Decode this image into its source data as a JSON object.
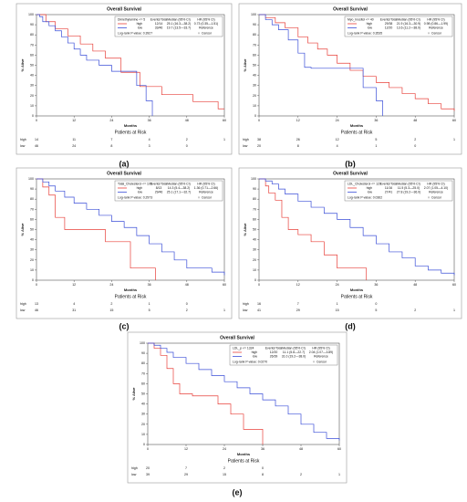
{
  "chart_data": [
    {
      "type": "line",
      "label": "(a)",
      "title": "Overall Survival",
      "legend_title": "Dimethylamine <= 5",
      "columns": [
        "Events/Total",
        "Median (95% CI)",
        "HR (95% CI)"
      ],
      "pvalue": "Log-rank P-value: 0.3927",
      "censor": "Censor",
      "xlabel": "Months",
      "ylabel": "% Alive",
      "risk_title": "Patients at Risk",
      "xlim": [
        0,
        60
      ],
      "ylim": [
        0,
        100
      ],
      "xticks": [
        0,
        12,
        24,
        36,
        48,
        60
      ],
      "yticks": [
        0,
        10,
        20,
        30,
        40,
        50,
        60,
        70,
        80,
        90,
        100
      ],
      "series": [
        {
          "name": "high",
          "color": "#e8403a",
          "events": "12/14",
          "median": "25.1 (16.3—38.2)",
          "hr": "0.73 (0.35—1.51)",
          "x": [
            0,
            3,
            6,
            10,
            14,
            18,
            22,
            27,
            33,
            40,
            50,
            58,
            60
          ],
          "values": [
            100,
            93,
            86,
            79,
            71,
            64,
            57,
            43,
            29,
            21,
            14,
            7,
            7
          ],
          "risk": [
            14,
            11,
            7,
            4,
            2,
            1
          ]
        },
        {
          "name": "low",
          "color": "#3b4fd8",
          "events": "33/46",
          "median": "19.7 (13.5—33.7)",
          "hr": "Reference",
          "x": [
            0,
            1,
            2,
            4,
            6,
            8,
            10,
            12,
            14,
            16,
            20,
            24,
            28,
            32,
            35,
            37
          ],
          "values": [
            100,
            98,
            93,
            89,
            84,
            78,
            72,
            66,
            60,
            55,
            50,
            44,
            44,
            30,
            15,
            0
          ],
          "risk": [
            46,
            24,
            8,
            3,
            0,
            null
          ]
        }
      ]
    },
    {
      "type": "line",
      "label": "(b)",
      "title": "Overall Survival",
      "legend_title": "Myo_Inositol <= 40",
      "columns": [
        "Events/Total",
        "Median (95% CI)",
        "HR (95% CI)"
      ],
      "pvalue": "Log-rank P-value: 0.3535",
      "censor": "Censor",
      "xlabel": "Months",
      "ylabel": "% Alive",
      "risk_title": "Patients at Risk",
      "xlim": [
        0,
        60
      ],
      "ylim": [
        0,
        100
      ],
      "xticks": [
        0,
        12,
        24,
        36,
        48,
        60
      ],
      "yticks": [
        0,
        10,
        20,
        30,
        40,
        50,
        60,
        70,
        80,
        90,
        100
      ],
      "series": [
        {
          "name": "high",
          "color": "#e8403a",
          "events": "29/38",
          "median": "21.9 (16.3—30.9)",
          "hr": "0.98 (0.86—1.99)",
          "x": [
            0,
            2,
            5,
            8,
            12,
            15,
            18,
            21,
            24,
            28,
            32,
            36,
            40,
            44,
            48,
            52,
            56,
            60
          ],
          "values": [
            100,
            97,
            92,
            87,
            78,
            72,
            66,
            60,
            52,
            45,
            39,
            33,
            28,
            22,
            17,
            12,
            7,
            5
          ],
          "risk": [
            38,
            26,
            12,
            5,
            2,
            1
          ]
        },
        {
          "name": "low",
          "color": "#3b4fd8",
          "events": "12/20",
          "median": "13.6 (11.2—38.0)",
          "hr": "Reference",
          "x": [
            0,
            2,
            4,
            6,
            9,
            12,
            14,
            16,
            26,
            32,
            36,
            38
          ],
          "values": [
            100,
            95,
            90,
            85,
            75,
            62,
            48,
            47,
            47,
            28,
            15,
            0
          ],
          "risk": [
            20,
            8,
            4,
            1,
            0,
            null
          ]
        }
      ]
    },
    {
      "type": "line",
      "label": "(c)",
      "title": "Overall Survival",
      "legend_title": "Total_Cholesterol <= 105",
      "columns": [
        "Events/Total",
        "Median (95% CI)",
        "HR (95% CI)"
      ],
      "pvalue": "Log-rank P-value: 0.2973",
      "censor": "Censor",
      "xlabel": "Months",
      "ylabel": "% Alive",
      "risk_title": "Patients at Risk",
      "xlim": [
        0,
        60
      ],
      "ylim": [
        0,
        100
      ],
      "xticks": [
        0,
        12,
        24,
        36,
        48,
        60
      ],
      "yticks": [
        0,
        10,
        20,
        30,
        40,
        50,
        60,
        70,
        80,
        90,
        100
      ],
      "series": [
        {
          "name": "high",
          "color": "#e8403a",
          "events": "8/13",
          "median": "14.3 (5.4—38.2)",
          "hr": "1.36 (0.71—2.66)",
          "x": [
            0,
            2,
            4,
            6,
            9,
            22,
            30,
            38
          ],
          "values": [
            100,
            92,
            84,
            62,
            50,
            38,
            12,
            0
          ],
          "risk": [
            13,
            4,
            2,
            1,
            0,
            null
          ]
        },
        {
          "name": "low",
          "color": "#3b4fd8",
          "events": "29/46",
          "median": "25.1 (17.1—32.7)",
          "hr": "Reference",
          "x": [
            0,
            2,
            4,
            6,
            9,
            12,
            16,
            20,
            24,
            28,
            32,
            36,
            40,
            44,
            48,
            56,
            60
          ],
          "values": [
            100,
            97,
            93,
            88,
            82,
            76,
            70,
            64,
            58,
            52,
            44,
            36,
            28,
            20,
            12,
            8,
            5
          ],
          "risk": [
            46,
            31,
            15,
            5,
            2,
            1
          ]
        }
      ]
    },
    {
      "type": "line",
      "label": "(d)",
      "title": "Overall Survival",
      "legend_title": "LDL_Cholesterol <= 120",
      "columns": [
        "Events/Total",
        "Median (95% CI)",
        "HR (95% CI)"
      ],
      "pvalue": "Log-rank P-value: 0.0362",
      "censor": "Censor",
      "xlabel": "Months",
      "ylabel": "% Alive",
      "risk_title": "Patients at Risk",
      "xlim": [
        0,
        60
      ],
      "ylim": [
        0,
        100
      ],
      "xticks": [
        0,
        12,
        24,
        36,
        48,
        60
      ],
      "yticks": [
        0,
        10,
        20,
        30,
        40,
        50,
        60,
        70,
        80,
        90,
        100
      ],
      "series": [
        {
          "name": "high",
          "color": "#e8403a",
          "events": "11/16",
          "median": "11.5 (5.3—25.0)",
          "hr": "2.07 (1.05—4.10)",
          "x": [
            0,
            2,
            3,
            5,
            7,
            9,
            12,
            16,
            20,
            24,
            28,
            33
          ],
          "values": [
            100,
            93,
            86,
            79,
            62,
            50,
            45,
            38,
            25,
            12,
            12,
            0
          ],
          "risk": [
            16,
            7,
            1,
            0,
            null,
            null
          ]
        },
        {
          "name": "low",
          "color": "#3b4fd8",
          "events": "27/41",
          "median": "27.8 (19.2—36.0)",
          "hr": "Reference",
          "x": [
            0,
            2,
            4,
            6,
            8,
            12,
            16,
            20,
            24,
            28,
            32,
            36,
            40,
            44,
            48,
            52,
            56,
            60
          ],
          "values": [
            100,
            98,
            95,
            90,
            85,
            78,
            72,
            66,
            60,
            52,
            44,
            36,
            28,
            22,
            14,
            10,
            7,
            5
          ],
          "risk": [
            41,
            29,
            15,
            5,
            2,
            1
          ]
        }
      ]
    },
    {
      "type": "line",
      "label": "(e)",
      "title": "Overall Survival",
      "legend_title": "LDL_p <= 1324",
      "columns": [
        "Events/Total",
        "Median (95% CI)",
        "HR (95% CI)"
      ],
      "pvalue": "Log-rank P-value: 0.0270",
      "censor": "Censor",
      "xlabel": "Months",
      "ylabel": "% Alive",
      "risk_title": "Patients at Risk",
      "xlim": [
        0,
        60
      ],
      "ylim": [
        0,
        100
      ],
      "xticks": [
        0,
        12,
        24,
        36,
        48,
        60
      ],
      "yticks": [
        0,
        10,
        20,
        30,
        40,
        50,
        60,
        70,
        80,
        90,
        100
      ],
      "series": [
        {
          "name": "high",
          "color": "#e8403a",
          "events": "12/20",
          "median": "11.1 (5.8—22.7)",
          "hr": "2.04 (1.07—3.89)",
          "x": [
            0,
            2,
            4,
            6,
            8,
            10,
            14,
            18,
            22,
            26,
            30,
            36
          ],
          "values": [
            100,
            95,
            88,
            75,
            60,
            50,
            48,
            48,
            40,
            30,
            15,
            0
          ],
          "risk": [
            20,
            7,
            2,
            0,
            null,
            null
          ]
        },
        {
          "name": "low",
          "color": "#3b4fd8",
          "events": "26/39",
          "median": "31.0 (19.2—38.0)",
          "hr": "Reference",
          "x": [
            0,
            2,
            4,
            6,
            8,
            12,
            16,
            20,
            24,
            28,
            32,
            36,
            40,
            44,
            48,
            52,
            56,
            60
          ],
          "values": [
            100,
            98,
            95,
            91,
            86,
            80,
            74,
            68,
            62,
            56,
            50,
            44,
            38,
            30,
            20,
            12,
            6,
            4
          ],
          "risk": [
            39,
            29,
            15,
            8,
            2,
            1
          ]
        }
      ]
    }
  ]
}
